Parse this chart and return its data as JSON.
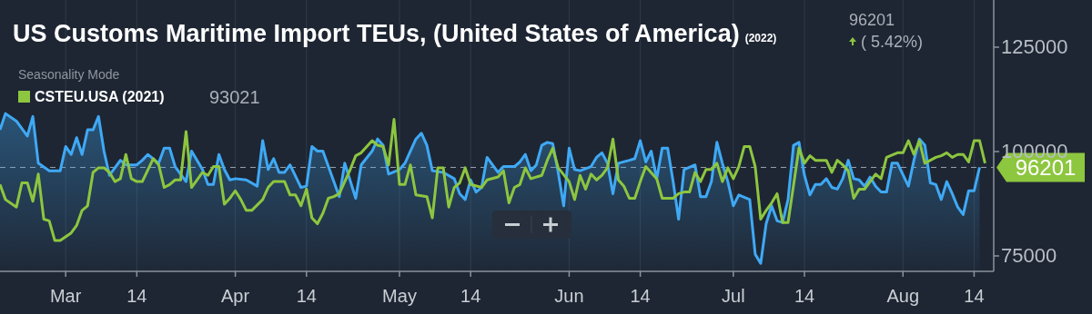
{
  "chart_data": {
    "type": "line",
    "title": "US Customs Maritime Import TEUs, (United States of America)",
    "subtitle": "(2022)",
    "legend_title": "Seasonality Mode",
    "legend": "top left",
    "grid": "x",
    "annotations": [
      "96201",
      "( 5.42%)",
      "93021"
    ],
    "xlim": [
      "2022-02-17",
      "2022-08-17T14:00"
    ],
    "xticks": [
      {
        "value": "2022-03-01",
        "label": "Mar"
      },
      {
        "value": "2022-03-14",
        "label": "14"
      },
      {
        "value": "2022-04-01",
        "label": "Apr"
      },
      {
        "value": "2022-04-14",
        "label": "14"
      },
      {
        "value": "2022-05-01",
        "label": "May"
      },
      {
        "value": "2022-05-14",
        "label": "14"
      },
      {
        "value": "2022-06-01",
        "label": "Jun"
      },
      {
        "value": "2022-06-14",
        "label": "14"
      },
      {
        "value": "2022-07-01",
        "label": "Jul"
      },
      {
        "value": "2022-07-14",
        "label": "14"
      },
      {
        "value": "2022-08-01",
        "label": "Aug"
      },
      {
        "value": "2022-08-14",
        "label": "14"
      }
    ],
    "ylim": [
      71300,
      136300
    ],
    "yticks": [
      75000,
      100000,
      125000
    ],
    "ref_lines": [
      {
        "axis": "y",
        "value": 96201,
        "label": "96201",
        "color": "#9aa3ad",
        "line_style": "dashed"
      }
    ],
    "series": [
      {
        "type": "area",
        "color": "#3fa9f5",
        "x": [
          "2022-02-17",
          "2022-02-18",
          "2022-02-20",
          "2022-02-22",
          "2022-02-23",
          "2022-02-24",
          "2022-02-26",
          "2022-02-28",
          "2022-03-01",
          "2022-03-02",
          "2022-03-03",
          "2022-03-04",
          "2022-03-05",
          "2022-03-06",
          "2022-03-07",
          "2022-03-08",
          "2022-03-09",
          "2022-03-11",
          "2022-03-12",
          "2022-03-14",
          "2022-03-15",
          "2022-03-16",
          "2022-03-18",
          "2022-03-19",
          "2022-03-20",
          "2022-03-21",
          "2022-03-23",
          "2022-03-24",
          "2022-03-26",
          "2022-03-27",
          "2022-03-28",
          "2022-03-29",
          "2022-03-30",
          "2022-03-31",
          "2022-04-01",
          "2022-04-03",
          "2022-04-05",
          "2022-04-06",
          "2022-04-07",
          "2022-04-08",
          "2022-04-09",
          "2022-04-10",
          "2022-04-11",
          "2022-04-13",
          "2022-04-14",
          "2022-04-15",
          "2022-04-16",
          "2022-04-17",
          "2022-04-19",
          "2022-04-20",
          "2022-04-21",
          "2022-04-23",
          "2022-04-24",
          "2022-04-26",
          "2022-04-27",
          "2022-04-28",
          "2022-04-29",
          "2022-05-01",
          "2022-05-02",
          "2022-05-04",
          "2022-05-05",
          "2022-05-06",
          "2022-05-07",
          "2022-05-09",
          "2022-05-11",
          "2022-05-12",
          "2022-05-13",
          "2022-05-14",
          "2022-05-15",
          "2022-05-16",
          "2022-05-17",
          "2022-05-19",
          "2022-05-20",
          "2022-05-22",
          "2022-05-23",
          "2022-05-24",
          "2022-05-25",
          "2022-05-26",
          "2022-05-27",
          "2022-05-28",
          "2022-05-29",
          "2022-05-30",
          "2022-05-31",
          "2022-06-01",
          "2022-06-02",
          "2022-06-03",
          "2022-06-05",
          "2022-06-06",
          "2022-06-07",
          "2022-06-08",
          "2022-06-09",
          "2022-06-10",
          "2022-06-12",
          "2022-06-13",
          "2022-06-14",
          "2022-06-15",
          "2022-06-16",
          "2022-06-17",
          "2022-06-18",
          "2022-06-19",
          "2022-06-20",
          "2022-06-21",
          "2022-06-22",
          "2022-06-24",
          "2022-06-25",
          "2022-06-26",
          "2022-06-27",
          "2022-06-28",
          "2022-06-29",
          "2022-06-30",
          "2022-07-01",
          "2022-07-02",
          "2022-07-04",
          "2022-07-05",
          "2022-07-06",
          "2022-07-07",
          "2022-07-08",
          "2022-07-09",
          "2022-07-10",
          "2022-07-11",
          "2022-07-12",
          "2022-07-13",
          "2022-07-14",
          "2022-07-15",
          "2022-07-16",
          "2022-07-17",
          "2022-07-18",
          "2022-07-19",
          "2022-07-20",
          "2022-07-21",
          "2022-07-22",
          "2022-07-23",
          "2022-07-24",
          "2022-07-25",
          "2022-07-26",
          "2022-07-27",
          "2022-07-28",
          "2022-07-29",
          "2022-07-30",
          "2022-07-31",
          "2022-08-02",
          "2022-08-03",
          "2022-08-04",
          "2022-08-05",
          "2022-08-06",
          "2022-08-07",
          "2022-08-08",
          "2022-08-09",
          "2022-08-10",
          "2022-08-11",
          "2022-08-12",
          "2022-08-13",
          "2022-08-14",
          "2022-08-15"
        ],
        "values": [
          105200,
          109100,
          107300,
          103700,
          108400,
          97200,
          95400,
          95400,
          101200,
          99300,
          103300,
          99300,
          105200,
          105200,
          108400,
          100100,
          94300,
          97900,
          96800,
          96800,
          97900,
          99300,
          97200,
          100800,
          100800,
          96400,
          92800,
          100100,
          95700,
          92100,
          92100,
          99300,
          95700,
          93200,
          93500,
          93200,
          91700,
          102600,
          95700,
          98300,
          95000,
          95000,
          96800,
          91400,
          91700,
          101200,
          100100,
          100100,
          92800,
          89200,
          97200,
          88800,
          96800,
          100100,
          103000,
          101500,
          94600,
          95700,
          97200,
          103000,
          104400,
          101500,
          95400,
          95000,
          93500,
          89900,
          88500,
          93200,
          90300,
          91400,
          98600,
          95000,
          96400,
          96400,
          97500,
          99300,
          95400,
          96800,
          101500,
          102200,
          101900,
          95000,
          87000,
          100800,
          95700,
          95400,
          96400,
          98600,
          99700,
          97200,
          89900,
          97200,
          97900,
          98300,
          102600,
          97500,
          100100,
          93500,
          100800,
          100800,
          92800,
          83800,
          95700,
          96800,
          89200,
          89200,
          92800,
          102200,
          97200,
          92800,
          87000,
          89600,
          88500,
          75400,
          73200,
          82700,
          87000,
          83400,
          83000,
          88500,
          101500,
          102200,
          94300,
          89600,
          92100,
          92100,
          93500,
          91400,
          91000,
          93500,
          97900,
          93500,
          93200,
          91700,
          93900,
          91700,
          90300,
          90300,
          97200,
          97200,
          91700,
          97900,
          103000,
          101500,
          92500,
          92100,
          88500,
          92800,
          89900,
          86700,
          84900,
          90600,
          90600,
          96200
        ]
      },
      {
        "name": "CSTEU.USA (2021)",
        "color": "#8dc63f",
        "x": [
          "2022-02-17",
          "2022-02-18",
          "2022-02-20",
          "2022-02-21",
          "2022-02-22",
          "2022-02-23",
          "2022-02-24",
          "2022-02-25",
          "2022-02-26",
          "2022-02-27",
          "2022-02-28",
          "2022-03-02",
          "2022-03-03",
          "2022-03-04",
          "2022-03-05",
          "2022-03-06",
          "2022-03-07",
          "2022-03-08",
          "2022-03-09",
          "2022-03-10",
          "2022-03-11",
          "2022-03-12",
          "2022-03-13",
          "2022-03-14",
          "2022-03-15",
          "2022-03-17",
          "2022-03-18",
          "2022-03-19",
          "2022-03-20",
          "2022-03-21",
          "2022-03-22",
          "2022-03-23",
          "2022-03-24",
          "2022-03-25",
          "2022-03-26",
          "2022-03-27",
          "2022-03-28",
          "2022-03-29",
          "2022-03-30",
          "2022-03-31",
          "2022-04-01",
          "2022-04-02",
          "2022-04-03",
          "2022-04-04",
          "2022-04-06",
          "2022-04-07",
          "2022-04-08",
          "2022-04-10",
          "2022-04-11",
          "2022-04-12",
          "2022-04-13",
          "2022-04-14",
          "2022-04-15",
          "2022-04-16",
          "2022-04-17",
          "2022-04-18",
          "2022-04-19",
          "2022-04-20",
          "2022-04-21",
          "2022-04-22",
          "2022-04-23",
          "2022-04-24",
          "2022-04-26",
          "2022-04-27",
          "2022-04-28",
          "2022-04-29",
          "2022-04-30",
          "2022-05-01",
          "2022-05-02",
          "2022-05-03",
          "2022-05-04",
          "2022-05-06",
          "2022-05-07",
          "2022-05-08",
          "2022-05-09",
          "2022-05-10",
          "2022-05-11",
          "2022-05-12",
          "2022-05-13",
          "2022-05-14",
          "2022-05-16",
          "2022-05-17",
          "2022-05-19",
          "2022-05-20",
          "2022-05-21",
          "2022-05-22",
          "2022-05-23",
          "2022-05-24",
          "2022-05-25",
          "2022-05-27",
          "2022-05-28",
          "2022-05-29",
          "2022-05-30",
          "2022-06-01",
          "2022-06-02",
          "2022-06-03",
          "2022-06-04",
          "2022-06-05",
          "2022-06-06",
          "2022-06-07",
          "2022-06-08",
          "2022-06-09",
          "2022-06-10",
          "2022-06-11",
          "2022-06-12",
          "2022-06-13",
          "2022-06-14",
          "2022-06-15",
          "2022-06-17",
          "2022-06-18",
          "2022-06-20",
          "2022-06-21",
          "2022-06-22",
          "2022-06-23",
          "2022-06-24",
          "2022-06-25",
          "2022-06-26",
          "2022-06-27",
          "2022-06-28",
          "2022-06-29",
          "2022-06-30",
          "2022-07-01",
          "2022-07-02",
          "2022-07-03",
          "2022-07-04",
          "2022-07-05",
          "2022-07-06",
          "2022-07-07",
          "2022-07-08",
          "2022-07-09",
          "2022-07-10",
          "2022-07-11",
          "2022-07-13",
          "2022-07-14",
          "2022-07-15",
          "2022-07-16",
          "2022-07-18",
          "2022-07-19",
          "2022-07-20",
          "2022-07-21",
          "2022-07-22",
          "2022-07-23",
          "2022-07-24",
          "2022-07-25",
          "2022-07-27",
          "2022-07-28",
          "2022-07-29",
          "2022-07-31",
          "2022-08-01",
          "2022-08-02",
          "2022-08-03",
          "2022-08-04",
          "2022-08-05",
          "2022-08-07",
          "2022-08-08",
          "2022-08-09",
          "2022-08-10",
          "2022-08-11",
          "2022-08-12",
          "2022-08-13",
          "2022-08-14",
          "2022-08-15",
          "2022-08-16"
        ],
        "values": [
          92100,
          88500,
          86700,
          92500,
          92500,
          88100,
          94600,
          83800,
          83400,
          78700,
          78700,
          80500,
          82300,
          85900,
          87000,
          95000,
          96100,
          96100,
          95000,
          92800,
          93500,
          99300,
          93500,
          92800,
          92800,
          98300,
          96800,
          91400,
          92100,
          93200,
          93200,
          104800,
          91400,
          93200,
          95000,
          94300,
          96400,
          96400,
          87400,
          88800,
          90600,
          88500,
          85900,
          85900,
          88500,
          91400,
          92800,
          92800,
          89600,
          89600,
          87000,
          91000,
          84100,
          82700,
          85200,
          88800,
          89200,
          89900,
          92800,
          95700,
          99000,
          99700,
          102600,
          101500,
          101200,
          96800,
          107700,
          92100,
          92100,
          96800,
          89600,
          89200,
          84100,
          96100,
          96100,
          86700,
          91400,
          92500,
          96100,
          92100,
          91400,
          93200,
          93900,
          95400,
          87700,
          91400,
          92100,
          96100,
          93500,
          94300,
          97900,
          100800,
          96100,
          92800,
          88500,
          94300,
          91000,
          94600,
          93200,
          94300,
          96100,
          103000,
          93200,
          91700,
          88800,
          88800,
          92800,
          96400,
          93500,
          88800,
          88800,
          89900,
          90300,
          90300,
          95000,
          92800,
          95700,
          95700,
          97200,
          92800,
          96100,
          93500,
          96400,
          101200,
          101200,
          96400,
          83800,
          85900,
          87700,
          89900,
          83000,
          83000,
          100800,
          97200,
          99000,
          97900,
          97900,
          95000,
          97900,
          96800,
          95400,
          88800,
          91000,
          91000,
          94600,
          93500,
          98600,
          99700,
          99700,
          102600,
          99300,
          102600,
          97200,
          98600,
          99000,
          99700,
          98600,
          99300,
          99300,
          97500,
          102600,
          102600,
          97200
        ]
      }
    ]
  }
}
